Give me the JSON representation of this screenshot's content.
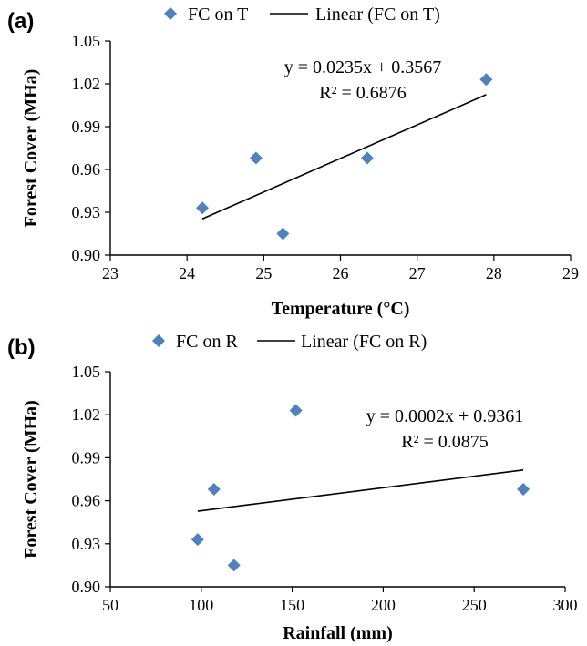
{
  "colors": {
    "marker": "#4f81bd",
    "line": "#000000",
    "axis": "#000000"
  },
  "chart_data": [
    {
      "type": "scatter",
      "panel_label": "(a)",
      "legend": {
        "placement": "top",
        "series_label": "FC on T",
        "trend_label": "Linear (FC on T)"
      },
      "xlabel": "Temperature (°C)",
      "ylabel": "Forest Cover (MHa)",
      "xlim": [
        23,
        29
      ],
      "ylim": [
        0.9,
        1.05
      ],
      "xticks": [
        23,
        24,
        25,
        26,
        27,
        28,
        29
      ],
      "xtick_labels": [
        "23",
        "24",
        "25",
        "26",
        "27",
        "28",
        "29"
      ],
      "yticks": [
        0.9,
        0.93,
        0.96,
        0.99,
        1.02,
        1.05
      ],
      "ytick_labels": [
        "0.90",
        "0.93",
        "0.96",
        "0.99",
        "1.02",
        "1.05"
      ],
      "grid": false,
      "series": [
        {
          "name": "FC on T",
          "x": [
            24.2,
            24.9,
            25.25,
            26.35,
            27.9
          ],
          "y": [
            0.933,
            0.968,
            0.915,
            0.968,
            1.023
          ]
        }
      ],
      "trendline": {
        "name": "Linear (FC on T)",
        "x": [
          24.2,
          27.9
        ],
        "y": [
          0.9254,
          1.0124
        ]
      },
      "equation": "y = 0.0235x + 0.3567",
      "r_squared": "R² = 0.6876"
    },
    {
      "type": "scatter",
      "panel_label": "(b)",
      "legend": {
        "placement": "top",
        "series_label": "FC on R",
        "trend_label": "Linear (FC on R)"
      },
      "xlabel": "Rainfall (mm)",
      "ylabel": "Forest Cover (MHa)",
      "xlim": [
        50,
        300
      ],
      "ylim": [
        0.9,
        1.05
      ],
      "xticks": [
        50,
        100,
        150,
        200,
        250,
        300
      ],
      "xtick_labels": [
        "50",
        "100",
        "150",
        "200",
        "250",
        "300"
      ],
      "yticks": [
        0.9,
        0.93,
        0.96,
        0.99,
        1.02,
        1.05
      ],
      "ytick_labels": [
        "0.90",
        "0.93",
        "0.96",
        "0.99",
        "1.02",
        "1.05"
      ],
      "grid": false,
      "series": [
        {
          "name": "FC on R",
          "x": [
            98,
            107,
            118,
            152,
            277
          ],
          "y": [
            0.933,
            0.968,
            0.915,
            1.023,
            0.968
          ]
        }
      ],
      "trendline": {
        "name": "Linear (FC on R)",
        "x": [
          98,
          277
        ],
        "y": [
          0.9527,
          0.9815
        ]
      },
      "equation": "y = 0.0002x + 0.9361",
      "r_squared": "R² = 0.0875"
    }
  ]
}
